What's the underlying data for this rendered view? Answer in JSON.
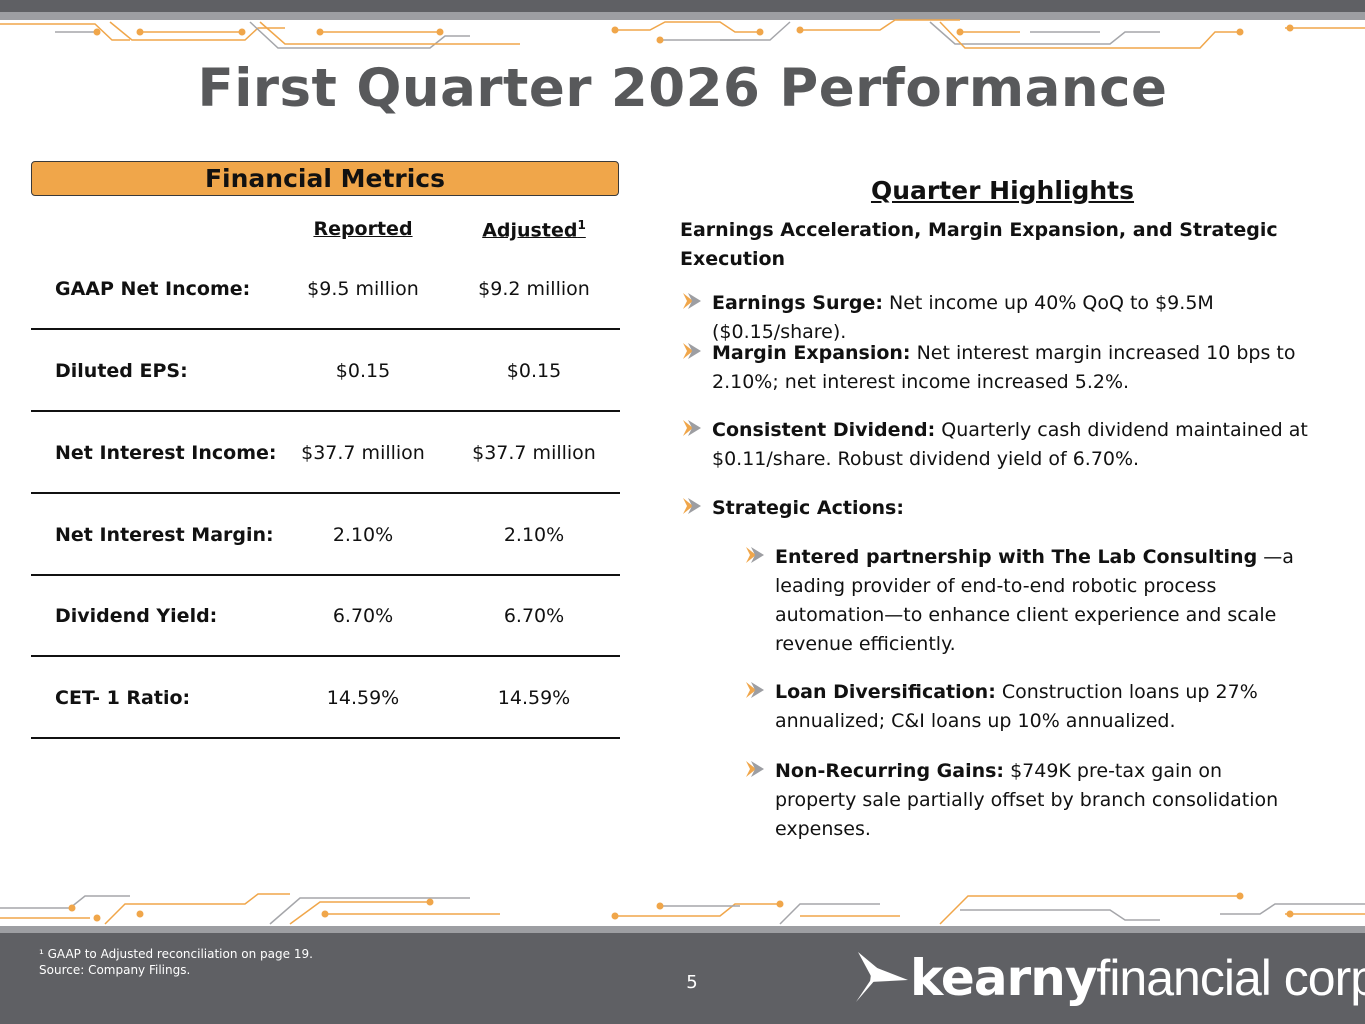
{
  "slide": {
    "title": "First Quarter 2026 Performance",
    "page_number": "5"
  },
  "metrics": {
    "header": "Financial Metrics",
    "col_reported": "Reported",
    "col_adjusted": "Adjusted",
    "col_adjusted_sup": "1",
    "rows": [
      {
        "label": "GAAP Net Income:",
        "reported": "$9.5 million",
        "adjusted": "$9.2 million"
      },
      {
        "label": "Diluted EPS:",
        "reported": "$0.15",
        "adjusted": "$0.15"
      },
      {
        "label": "Net Interest Income:",
        "reported": "$37.7 million",
        "adjusted": "$37.7 million"
      },
      {
        "label": "Net Interest Margin:",
        "reported": "2.10%",
        "adjusted": "2.10%"
      },
      {
        "label": "Dividend Yield:",
        "reported": "6.70%",
        "adjusted": "6.70%"
      },
      {
        "label": "CET- 1 Ratio:",
        "reported": "14.59%",
        "adjusted": "14.59%"
      }
    ]
  },
  "highlights": {
    "title": "Quarter Highlights",
    "subtitle": "Earnings Acceleration, Margin Expansion, and Strategic Execution",
    "bullets": [
      {
        "bold": "Earnings Surge:",
        "text": " Net income up 40% QoQ to $9.5M ($0.15/share)."
      },
      {
        "bold": "Margin Expansion:",
        "text": " Net interest margin increased 10 bps to 2.10%; net interest income increased 5.2%."
      },
      {
        "bold": "Consistent Dividend:",
        "text": " Quarterly cash dividend maintained at $0.11/share. Robust dividend yield of 6.70%."
      },
      {
        "bold": "Strategic Actions:",
        "text": ""
      }
    ],
    "sub_bullets": [
      {
        "bold": "Entered partnership with The Lab Consulting",
        "text": " —a leading provider of end-to-end robotic process automation—to enhance client experience and scale revenue efficiently."
      },
      {
        "bold": "Loan Diversification:",
        "text": " Construction loans up 27% annualized; C&I loans up 10% annualized."
      },
      {
        "bold": "Non-Recurring Gains:",
        "text": " $749K pre-tax gain on property sale partially offset by branch consolidation expenses."
      }
    ]
  },
  "footer": {
    "footnote_line1": "¹ GAAP to Adjusted reconciliation on page 19.",
    "footnote_line2": "Source: Company Filings.",
    "logo_bold": "kearny",
    "logo_light": "financial corp."
  },
  "colors": {
    "accent_orange": "#f0a64a",
    "title_gray": "#58595b",
    "bar_gray": "#5f6064",
    "circuit_orange": "#f0a64a",
    "circuit_gray": "#a5a6aa"
  },
  "icons": {
    "bullet": "chevron-arrow-icon",
    "logo": "kearny-swoosh-icon"
  }
}
